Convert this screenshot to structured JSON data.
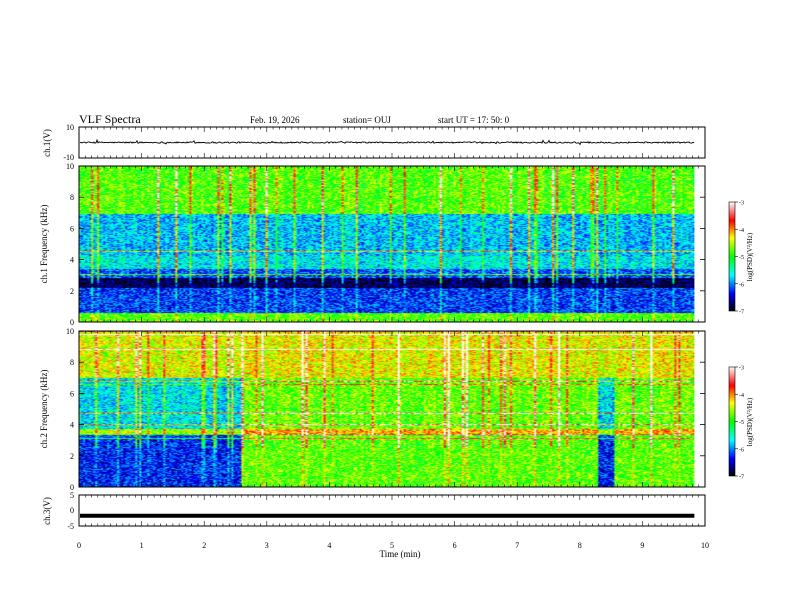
{
  "header": {
    "title": "VLF Spectra",
    "date": "Feb. 19, 2026",
    "station": "station= OUJ",
    "start_ut": "start  UT =   17: 50: 0"
  },
  "colorbar": {
    "label": "log(PSD)(V²/Hz)",
    "ticks": [
      "-3",
      "-4",
      "-5",
      "-6",
      "-7"
    ],
    "colors": [
      "#ffffff",
      "#ff0000",
      "#ffff00",
      "#00ff00",
      "#00ffff",
      "#0000ff",
      "#000000"
    ]
  },
  "chart_data": [
    {
      "type": "line",
      "name": "ch.1 waveform",
      "ylabel": "ch.1(V)",
      "ylim": [
        -10,
        10
      ],
      "ytick_labels": [
        "10",
        "-10"
      ],
      "description_values": {
        "baseline_v": 0,
        "noise_amplitude_v": 1
      }
    },
    {
      "type": "heatmap",
      "name": "ch.1 spectrogram",
      "ylabel": "ch.1 Frequency (kHz)",
      "ylim": [
        0,
        10
      ],
      "ytick_labels": [
        "0",
        "2",
        "4",
        "6",
        "8",
        "10"
      ],
      "bands": [
        {
          "from_khz": 0.0,
          "to_khz": 0.6,
          "level": 0.55
        },
        {
          "from_khz": 0.6,
          "to_khz": 2.2,
          "level": 0.2
        },
        {
          "from_khz": 2.2,
          "to_khz": 2.8,
          "level": 0.05
        },
        {
          "from_khz": 2.8,
          "to_khz": 3.4,
          "level": 0.22
        },
        {
          "from_khz": 3.4,
          "to_khz": 4.2,
          "level": 0.34
        },
        {
          "from_khz": 4.2,
          "to_khz": 7.0,
          "level": 0.3
        },
        {
          "from_khz": 7.0,
          "to_khz": 10.0,
          "level": 0.55
        }
      ]
    },
    {
      "type": "heatmap",
      "name": "ch.2 spectrogram",
      "ylabel": "ch.2 Frequency (kHz)",
      "ylim": [
        0,
        10
      ],
      "ytick_labels": [
        "0",
        "2",
        "4",
        "6",
        "8",
        "10"
      ],
      "quiet_interval_min": [
        0,
        2.6
      ],
      "second_quiet_interval_min": [
        8.3,
        8.55
      ],
      "bands": [
        {
          "from_khz": 0.0,
          "to_khz": 3.4,
          "level_quiet": 0.18,
          "level_active": 0.55
        },
        {
          "from_khz": 3.4,
          "to_khz": 3.7,
          "level_quiet": 0.6,
          "level_active": 0.72
        },
        {
          "from_khz": 3.7,
          "to_khz": 7.0,
          "level_quiet": 0.32,
          "level_active": 0.56
        },
        {
          "from_khz": 7.0,
          "to_khz": 10.0,
          "level_quiet": 0.64,
          "level_active": 0.66
        }
      ]
    },
    {
      "type": "line",
      "name": "ch.3 waveform",
      "ylabel": "ch.3(V)",
      "ylim": [
        -5,
        5
      ],
      "ytick_labels": [
        "5",
        "0",
        "-5"
      ],
      "description_values": {
        "constant_v": -1.7
      }
    }
  ],
  "xaxis": {
    "label": "Time  (min)",
    "range": [
      0,
      10
    ],
    "tick_labels": [
      "0",
      "1",
      "2",
      "3",
      "4",
      "5",
      "6",
      "7",
      "8",
      "9",
      "10"
    ],
    "data_end_min": 9.83
  }
}
